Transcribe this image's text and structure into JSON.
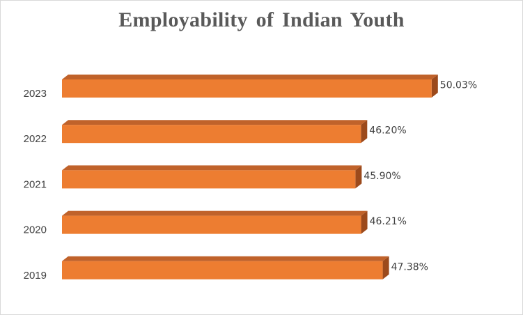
{
  "chart_data": {
    "type": "bar",
    "orientation": "horizontal",
    "style": "3d",
    "title": "Employability  of Indian Youth",
    "categories": [
      "2023",
      "2022",
      "2021",
      "2020",
      "2019"
    ],
    "values": [
      50.03,
      46.2,
      45.9,
      46.21,
      47.38
    ],
    "data_labels": [
      "50.03%",
      "46.20%",
      "45.90%",
      "46.21%",
      "47.38%"
    ],
    "xlim": [
      30,
      51
    ],
    "grid": false,
    "legend": "none",
    "colors": {
      "bar_front": "#ed7d31",
      "bar_top": "#c0622a",
      "bar_side": "#9c4a1c"
    }
  }
}
